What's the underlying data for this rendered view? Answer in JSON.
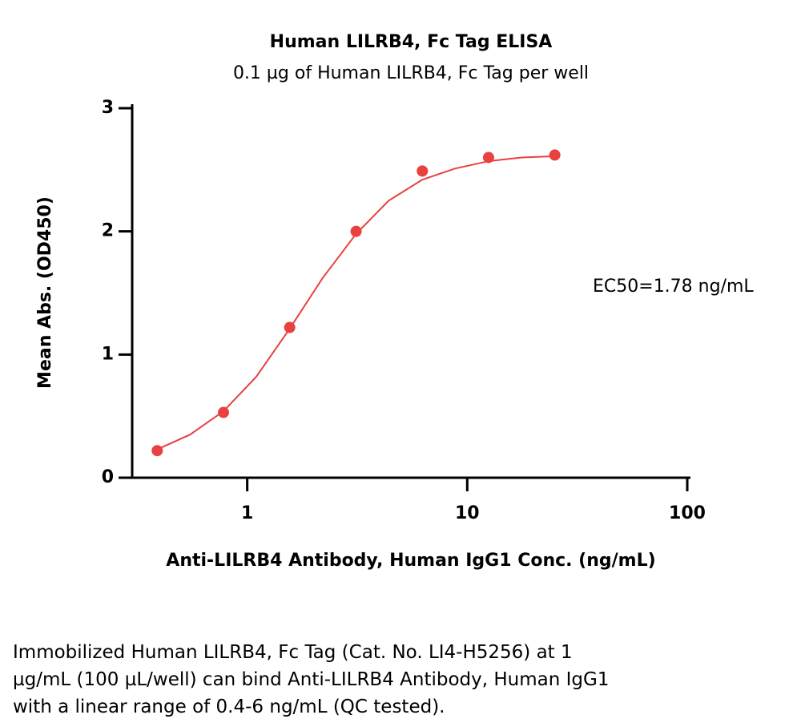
{
  "chart_data": {
    "type": "scatter",
    "title": "Human LILRB4, Fc Tag ELISA",
    "subtitle": "0.1 µg of Human LILRB4, Fc Tag per well",
    "x_label": "Anti-LILRB4 Antibody, Human IgG1 Conc. (ng/mL)",
    "y_label": "Mean Abs. (OD450)",
    "annotation": "EC50=1.78 ng/mL",
    "xscale": "log",
    "color": "#e8413f",
    "x": [
      0.39,
      0.78,
      1.56,
      3.125,
      6.25,
      12.5,
      25
    ],
    "values": [
      0.22,
      0.53,
      1.22,
      2.0,
      2.49,
      2.6,
      2.62
    ],
    "curve": {
      "x": [
        0.39,
        0.55,
        0.78,
        1.1,
        1.56,
        2.2,
        3.125,
        4.4,
        6.25,
        8.8,
        12.5,
        17.7,
        25
      ],
      "values": [
        0.23,
        0.35,
        0.54,
        0.82,
        1.21,
        1.62,
        1.98,
        2.25,
        2.42,
        2.51,
        2.57,
        2.6,
        2.61
      ]
    },
    "xlim": [
      0.3,
      100
    ],
    "xticks": [
      1,
      10,
      100
    ],
    "ylim": [
      0,
      3
    ],
    "yticks": [
      0,
      1,
      2,
      3
    ]
  },
  "caption": [
    "Immobilized Human LILRB4, Fc Tag (Cat. No. LI4-H5256) at 1",
    "µg/mL (100 µL/well) can bind Anti-LILRB4 Antibody, Human IgG1",
    "with a linear range of 0.4-6 ng/mL (QC tested)."
  ]
}
